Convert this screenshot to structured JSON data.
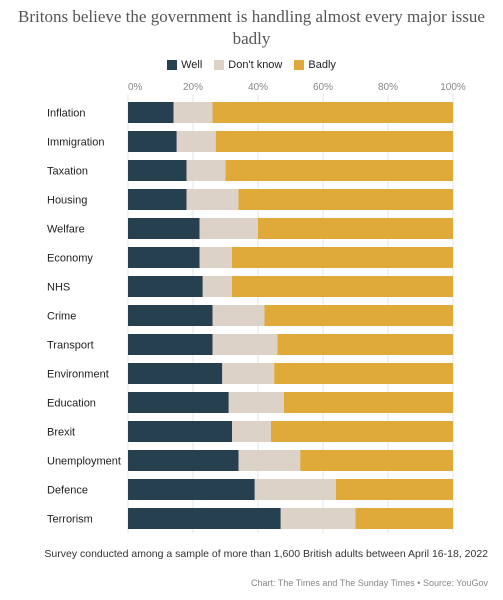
{
  "title": "Britons believe the government is handling almost every major issue badly",
  "footnote": "Survey conducted among a sample of more than 1,600 British adults between April 16-18, 2022",
  "credit": "Chart: The Times and The Sunday Times • Source: YouGov",
  "colors": {
    "well": "#27404f",
    "dont_know": "#dcd2c8",
    "badly": "#e0aa3b"
  },
  "chart_data": {
    "type": "bar",
    "orientation": "horizontal",
    "stacked": true,
    "xlim": [
      0,
      100
    ],
    "x_ticks": [
      "0%",
      "20%",
      "40%",
      "60%",
      "80%",
      "100%"
    ],
    "legend_position": "top",
    "grid": true,
    "categories": [
      "Inflation",
      "Immigration",
      "Taxation",
      "Housing",
      "Welfare",
      "Economy",
      "NHS",
      "Crime",
      "Transport",
      "Environment",
      "Education",
      "Brexit",
      "Unemployment",
      "Defence",
      "Terrorism"
    ],
    "series": [
      {
        "name": "Well",
        "values": [
          14,
          15,
          18,
          18,
          22,
          22,
          23,
          26,
          26,
          29,
          31,
          32,
          34,
          39,
          47
        ]
      },
      {
        "name": "Don't know",
        "values": [
          12,
          12,
          12,
          16,
          18,
          10,
          9,
          16,
          20,
          16,
          17,
          12,
          19,
          25,
          23
        ]
      },
      {
        "name": "Badly",
        "values": [
          74,
          73,
          70,
          66,
          60,
          68,
          68,
          58,
          54,
          55,
          52,
          56,
          47,
          36,
          30
        ]
      }
    ]
  }
}
